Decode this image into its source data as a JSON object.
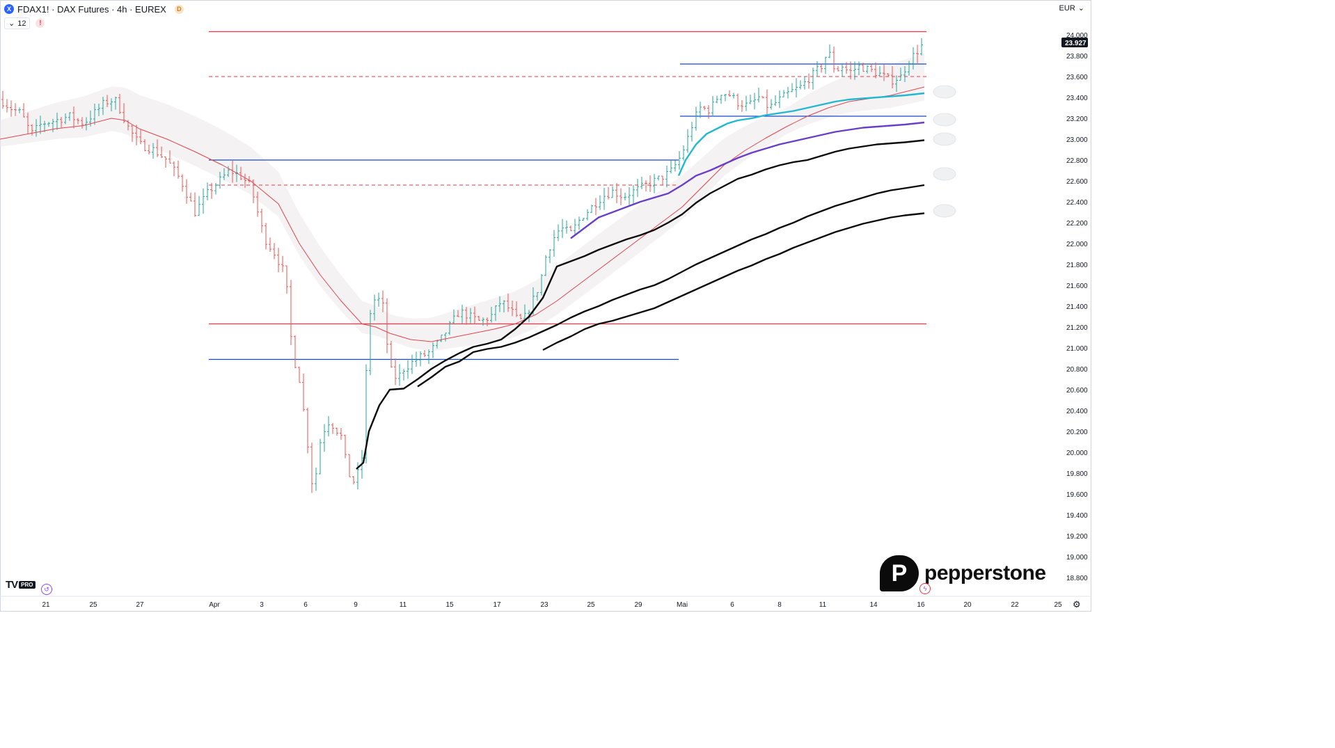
{
  "header": {
    "symbol_icon": "X",
    "symbol_title": "FDAX1! · DAX Futures · 4h · EUREX",
    "delayed_badge": "D"
  },
  "indicators": {
    "chevron_icon": "chevron-down-icon",
    "count": "12",
    "warning_icon": "!"
  },
  "currency": {
    "label": "EUR",
    "chevron_icon": "chevron-down-icon"
  },
  "watermark": {
    "tv_logo_mark": "TV",
    "tv_logo_badge": "PRO",
    "brand_name": "pepperstone",
    "brand_mark_letter": "P"
  },
  "colors": {
    "up_candle": "#26a69a",
    "down_candle": "#ef5350",
    "resistance_line": "#f23645",
    "support_line": "#1848cc",
    "ema_fast": "#e0444e",
    "cyan_line": "#21b8d0",
    "purple_line": "#6a3fc8",
    "black_line": "#0b0b0b",
    "price_tag_bg": "#131722"
  },
  "chart_data": {
    "type": "candlestick",
    "title": "FDAX1! · DAX Futures · 4h · EUREX",
    "ylim": [
      18700,
      24100
    ],
    "y_ticks": [
      "24.000",
      "23.800",
      "23.600",
      "23.400",
      "23.200",
      "23.000",
      "22.800",
      "22.600",
      "22.400",
      "22.200",
      "22.000",
      "21.800",
      "21.600",
      "21.400",
      "21.200",
      "21.000",
      "20.800",
      "20.600",
      "20.400",
      "20.200",
      "20.000",
      "19.800",
      "19.600",
      "19.400",
      "19.200",
      "19.000",
      "18.800"
    ],
    "x_ticks": [
      "21",
      "25",
      "27",
      "Apr",
      "3",
      "6",
      "9",
      "11",
      "15",
      "17",
      "23",
      "25",
      "29",
      "Mai",
      "6",
      "8",
      "11",
      "14",
      "16",
      "20",
      "22",
      "25"
    ],
    "last_price": 23927,
    "last_price_label": "23.927",
    "grid": false,
    "horizontal_lines": [
      {
        "price": 24030,
        "style": "solid",
        "color": "red"
      },
      {
        "price": 23600,
        "style": "dashed",
        "color": "red"
      },
      {
        "price": 22560,
        "style": "dashed",
        "color": "red"
      },
      {
        "price": 21230,
        "style": "solid",
        "color": "red"
      },
      {
        "price": 23720,
        "style": "solid",
        "color": "blue"
      },
      {
        "price": 23220,
        "style": "solid",
        "color": "blue"
      },
      {
        "price": 22800,
        "style": "solid",
        "color": "blue"
      },
      {
        "price": 20890,
        "style": "solid",
        "color": "blue"
      }
    ],
    "close_path": [
      [
        0,
        23380
      ],
      [
        15,
        23300
      ],
      [
        30,
        23250
      ],
      [
        45,
        23050
      ],
      [
        60,
        23150
      ],
      [
        80,
        23180
      ],
      [
        100,
        23220
      ],
      [
        120,
        23150
      ],
      [
        140,
        23280
      ],
      [
        150,
        23350
      ],
      [
        165,
        23380
      ],
      [
        175,
        23250
      ],
      [
        185,
        23100
      ],
      [
        200,
        22950
      ],
      [
        220,
        22900
      ],
      [
        240,
        22800
      ],
      [
        260,
        22600
      ],
      [
        280,
        22300
      ],
      [
        290,
        22400
      ],
      [
        300,
        22500
      ],
      [
        315,
        22600
      ],
      [
        330,
        22700
      ],
      [
        345,
        22650
      ],
      [
        360,
        22550
      ],
      [
        370,
        22300
      ],
      [
        380,
        22050
      ],
      [
        395,
        21900
      ],
      [
        410,
        21700
      ],
      [
        420,
        20950
      ],
      [
        430,
        20700
      ],
      [
        440,
        20200
      ],
      [
        450,
        19600
      ],
      [
        460,
        20100
      ],
      [
        470,
        20300
      ],
      [
        480,
        20250
      ],
      [
        490,
        20150
      ],
      [
        500,
        19800
      ],
      [
        510,
        19700
      ],
      [
        520,
        19950
      ],
      [
        530,
        21300
      ],
      [
        540,
        21500
      ],
      [
        550,
        21400
      ],
      [
        560,
        20800
      ],
      [
        570,
        20700
      ],
      [
        580,
        20800
      ],
      [
        590,
        20850
      ],
      [
        600,
        20900
      ],
      [
        615,
        20950
      ],
      [
        630,
        21050
      ],
      [
        645,
        21200
      ],
      [
        660,
        21350
      ],
      [
        675,
        21300
      ],
      [
        690,
        21250
      ],
      [
        705,
        21300
      ],
      [
        720,
        21450
      ],
      [
        735,
        21350
      ],
      [
        745,
        21250
      ],
      [
        755,
        21300
      ],
      [
        765,
        21450
      ],
      [
        775,
        21600
      ],
      [
        785,
        21900
      ],
      [
        795,
        22050
      ],
      [
        805,
        22150
      ],
      [
        820,
        22100
      ],
      [
        835,
        22250
      ],
      [
        850,
        22350
      ],
      [
        865,
        22450
      ],
      [
        880,
        22500
      ],
      [
        895,
        22450
      ],
      [
        910,
        22500
      ],
      [
        925,
        22550
      ],
      [
        940,
        22600
      ],
      [
        955,
        22650
      ],
      [
        965,
        22700
      ],
      [
        975,
        22800
      ],
      [
        985,
        22950
      ],
      [
        995,
        23150
      ],
      [
        1005,
        23300
      ],
      [
        1020,
        23280
      ],
      [
        1035,
        23450
      ],
      [
        1050,
        23420
      ],
      [
        1060,
        23350
      ],
      [
        1075,
        23320
      ],
      [
        1090,
        23400
      ],
      [
        1105,
        23300
      ],
      [
        1120,
        23380
      ],
      [
        1135,
        23450
      ],
      [
        1150,
        23500
      ],
      [
        1165,
        23600
      ],
      [
        1180,
        23700
      ],
      [
        1190,
        23850
      ],
      [
        1200,
        23650
      ],
      [
        1210,
        23700
      ],
      [
        1220,
        23640
      ],
      [
        1235,
        23700
      ],
      [
        1250,
        23660
      ],
      [
        1265,
        23620
      ],
      [
        1280,
        23560
      ],
      [
        1295,
        23600
      ],
      [
        1305,
        23750
      ],
      [
        1315,
        23820
      ],
      [
        1328,
        23927
      ]
    ],
    "series": [
      {
        "name": "",
        "kind": "ema-fast",
        "values": [
          [
            0,
            23000
          ],
          [
            40,
            23050
          ],
          [
            80,
            23100
          ],
          [
            120,
            23130
          ],
          [
            160,
            23200
          ],
          [
            180,
            23180
          ],
          [
            200,
            23100
          ],
          [
            240,
            23000
          ],
          [
            280,
            22880
          ],
          [
            320,
            22750
          ],
          [
            360,
            22600
          ],
          [
            400,
            22380
          ],
          [
            430,
            22000
          ],
          [
            460,
            21700
          ],
          [
            490,
            21450
          ],
          [
            520,
            21230
          ],
          [
            540,
            21200
          ],
          [
            560,
            21140
          ],
          [
            590,
            21080
          ],
          [
            620,
            21060
          ],
          [
            650,
            21100
          ],
          [
            680,
            21140
          ],
          [
            710,
            21180
          ],
          [
            740,
            21230
          ],
          [
            770,
            21320
          ],
          [
            800,
            21450
          ],
          [
            830,
            21600
          ],
          [
            860,
            21750
          ],
          [
            890,
            21900
          ],
          [
            920,
            22050
          ],
          [
            950,
            22200
          ],
          [
            980,
            22350
          ],
          [
            1010,
            22550
          ],
          [
            1040,
            22750
          ],
          [
            1070,
            22890
          ],
          [
            1100,
            23010
          ],
          [
            1130,
            23120
          ],
          [
            1160,
            23220
          ],
          [
            1190,
            23300
          ],
          [
            1220,
            23360
          ],
          [
            1250,
            23390
          ],
          [
            1280,
            23420
          ],
          [
            1310,
            23470
          ],
          [
            1328,
            23500
          ]
        ]
      },
      {
        "name": "",
        "kind": "cyan",
        "values": [
          [
            975,
            22650
          ],
          [
            985,
            22800
          ],
          [
            1000,
            22950
          ],
          [
            1015,
            23050
          ],
          [
            1030,
            23100
          ],
          [
            1045,
            23150
          ],
          [
            1060,
            23180
          ],
          [
            1080,
            23200
          ],
          [
            1100,
            23230
          ],
          [
            1120,
            23250
          ],
          [
            1140,
            23270
          ],
          [
            1160,
            23300
          ],
          [
            1180,
            23330
          ],
          [
            1200,
            23360
          ],
          [
            1220,
            23380
          ],
          [
            1240,
            23390
          ],
          [
            1260,
            23400
          ],
          [
            1280,
            23410
          ],
          [
            1300,
            23420
          ],
          [
            1328,
            23440
          ]
        ]
      },
      {
        "name": "",
        "kind": "purple",
        "values": [
          [
            820,
            22050
          ],
          [
            840,
            22150
          ],
          [
            860,
            22250
          ],
          [
            880,
            22300
          ],
          [
            900,
            22350
          ],
          [
            920,
            22400
          ],
          [
            940,
            22440
          ],
          [
            960,
            22480
          ],
          [
            980,
            22560
          ],
          [
            1000,
            22650
          ],
          [
            1020,
            22700
          ],
          [
            1040,
            22760
          ],
          [
            1060,
            22820
          ],
          [
            1080,
            22870
          ],
          [
            1100,
            22910
          ],
          [
            1120,
            22950
          ],
          [
            1140,
            22980
          ],
          [
            1160,
            23010
          ],
          [
            1180,
            23040
          ],
          [
            1200,
            23070
          ],
          [
            1220,
            23090
          ],
          [
            1240,
            23110
          ],
          [
            1260,
            23120
          ],
          [
            1280,
            23130
          ],
          [
            1300,
            23140
          ],
          [
            1328,
            23160
          ]
        ]
      },
      {
        "name": "",
        "kind": "black-1",
        "values": [
          [
            512,
            19840
          ],
          [
            522,
            19900
          ],
          [
            530,
            20200
          ],
          [
            545,
            20450
          ],
          [
            560,
            20600
          ],
          [
            580,
            20610
          ],
          [
            600,
            20700
          ],
          [
            620,
            20800
          ],
          [
            640,
            20880
          ],
          [
            660,
            20950
          ],
          [
            680,
            21010
          ],
          [
            700,
            21040
          ],
          [
            720,
            21080
          ],
          [
            740,
            21180
          ],
          [
            760,
            21300
          ],
          [
            780,
            21480
          ],
          [
            800,
            21780
          ],
          [
            820,
            21830
          ],
          [
            840,
            21880
          ],
          [
            860,
            21940
          ],
          [
            880,
            21990
          ],
          [
            900,
            22040
          ],
          [
            920,
            22080
          ],
          [
            940,
            22130
          ],
          [
            960,
            22200
          ],
          [
            980,
            22280
          ],
          [
            1000,
            22390
          ],
          [
            1020,
            22480
          ],
          [
            1040,
            22550
          ],
          [
            1060,
            22620
          ],
          [
            1080,
            22660
          ],
          [
            1100,
            22710
          ],
          [
            1120,
            22750
          ],
          [
            1140,
            22780
          ],
          [
            1160,
            22800
          ],
          [
            1180,
            22840
          ],
          [
            1200,
            22880
          ],
          [
            1220,
            22910
          ],
          [
            1240,
            22930
          ],
          [
            1260,
            22950
          ],
          [
            1280,
            22960
          ],
          [
            1300,
            22970
          ],
          [
            1328,
            22990
          ]
        ]
      },
      {
        "name": "",
        "kind": "black-2",
        "values": [
          [
            600,
            20630
          ],
          [
            620,
            20720
          ],
          [
            640,
            20820
          ],
          [
            660,
            20870
          ],
          [
            680,
            20960
          ],
          [
            700,
            20990
          ],
          [
            720,
            21010
          ],
          [
            740,
            21050
          ],
          [
            760,
            21100
          ],
          [
            780,
            21160
          ],
          [
            800,
            21220
          ],
          [
            820,
            21290
          ],
          [
            840,
            21350
          ],
          [
            860,
            21400
          ],
          [
            880,
            21460
          ],
          [
            900,
            21510
          ],
          [
            920,
            21560
          ],
          [
            940,
            21600
          ],
          [
            960,
            21660
          ],
          [
            980,
            21730
          ],
          [
            1000,
            21800
          ],
          [
            1020,
            21860
          ],
          [
            1040,
            21920
          ],
          [
            1060,
            21980
          ],
          [
            1080,
            22040
          ],
          [
            1100,
            22090
          ],
          [
            1120,
            22150
          ],
          [
            1140,
            22200
          ],
          [
            1160,
            22260
          ],
          [
            1180,
            22310
          ],
          [
            1200,
            22360
          ],
          [
            1220,
            22400
          ],
          [
            1240,
            22440
          ],
          [
            1260,
            22480
          ],
          [
            1280,
            22510
          ],
          [
            1300,
            22530
          ],
          [
            1328,
            22560
          ]
        ]
      },
      {
        "name": "",
        "kind": "black-3",
        "values": [
          [
            780,
            20980
          ],
          [
            800,
            21050
          ],
          [
            820,
            21110
          ],
          [
            840,
            21180
          ],
          [
            860,
            21230
          ],
          [
            880,
            21260
          ],
          [
            900,
            21300
          ],
          [
            920,
            21340
          ],
          [
            940,
            21380
          ],
          [
            960,
            21440
          ],
          [
            980,
            21500
          ],
          [
            1000,
            21560
          ],
          [
            1020,
            21620
          ],
          [
            1040,
            21680
          ],
          [
            1060,
            21740
          ],
          [
            1080,
            21790
          ],
          [
            1100,
            21850
          ],
          [
            1120,
            21900
          ],
          [
            1140,
            21960
          ],
          [
            1160,
            22010
          ],
          [
            1180,
            22060
          ],
          [
            1200,
            22110
          ],
          [
            1220,
            22150
          ],
          [
            1240,
            22190
          ],
          [
            1260,
            22220
          ],
          [
            1280,
            22250
          ],
          [
            1300,
            22270
          ],
          [
            1328,
            22290
          ]
        ]
      }
    ]
  }
}
